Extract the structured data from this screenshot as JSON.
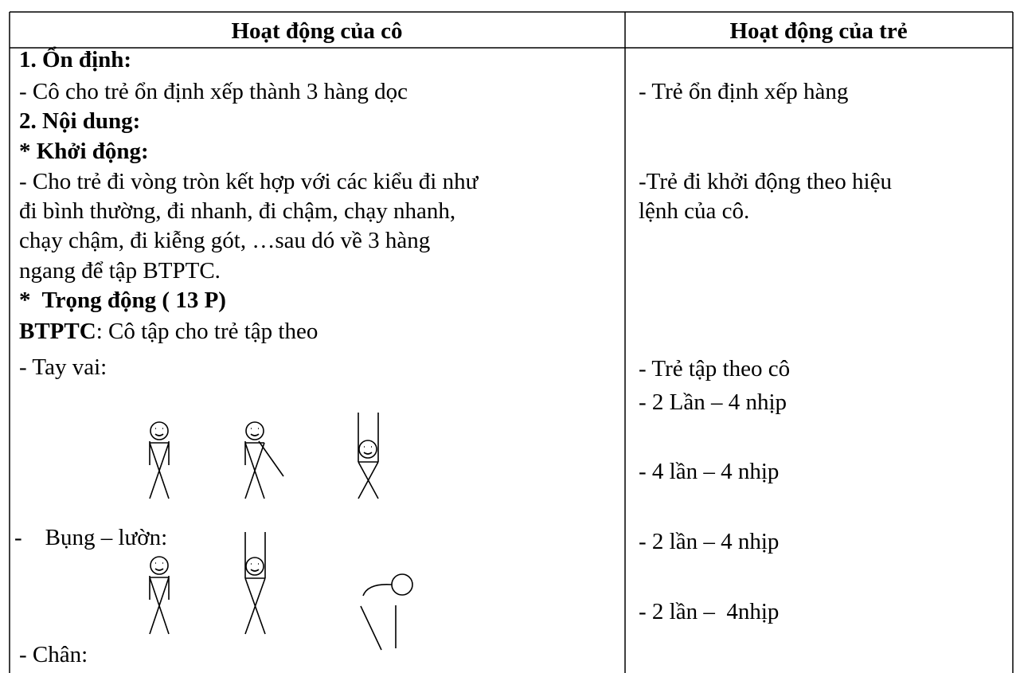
{
  "table": {
    "header": [
      "Hoạt động của cô",
      "Hoạt động của trẻ"
    ],
    "left": [
      "1. Ổn định:",
      "- Cô cho trẻ ổn định xếp thành 3 hàng dọc",
      "2. Nội dung:",
      "* Khởi động:",
      "- Cho trẻ đi vòng tròn kết hợp với các kiểu đi như",
      "đi bình thường, đi nhanh, đi chậm, chạy nhanh,",
      "chạy chậm, đi kiễng gót, …sau dó về 3 hàng",
      "ngang để tập BTPTC.",
      "*  Trọng động ( 13 P)",
      [
        "BTPTC",
        ": Cô tập cho trẻ tập theo"
      ],
      "- Tay vai:",
      "-    Bụng – lườn:",
      "- Chân:"
    ],
    "right": [
      "- Trẻ ổn định xếp hàng",
      "-Trẻ đi khởi động theo hiệu",
      "lệnh của cô.",
      "- Trẻ tập theo cô",
      "- 2 Lần – 4 nhịp",
      "- 4 lần – 4 nhịp",
      "- 2 lần – 4 nhịp",
      "- 2 lần –  4nhịp"
    ]
  }
}
